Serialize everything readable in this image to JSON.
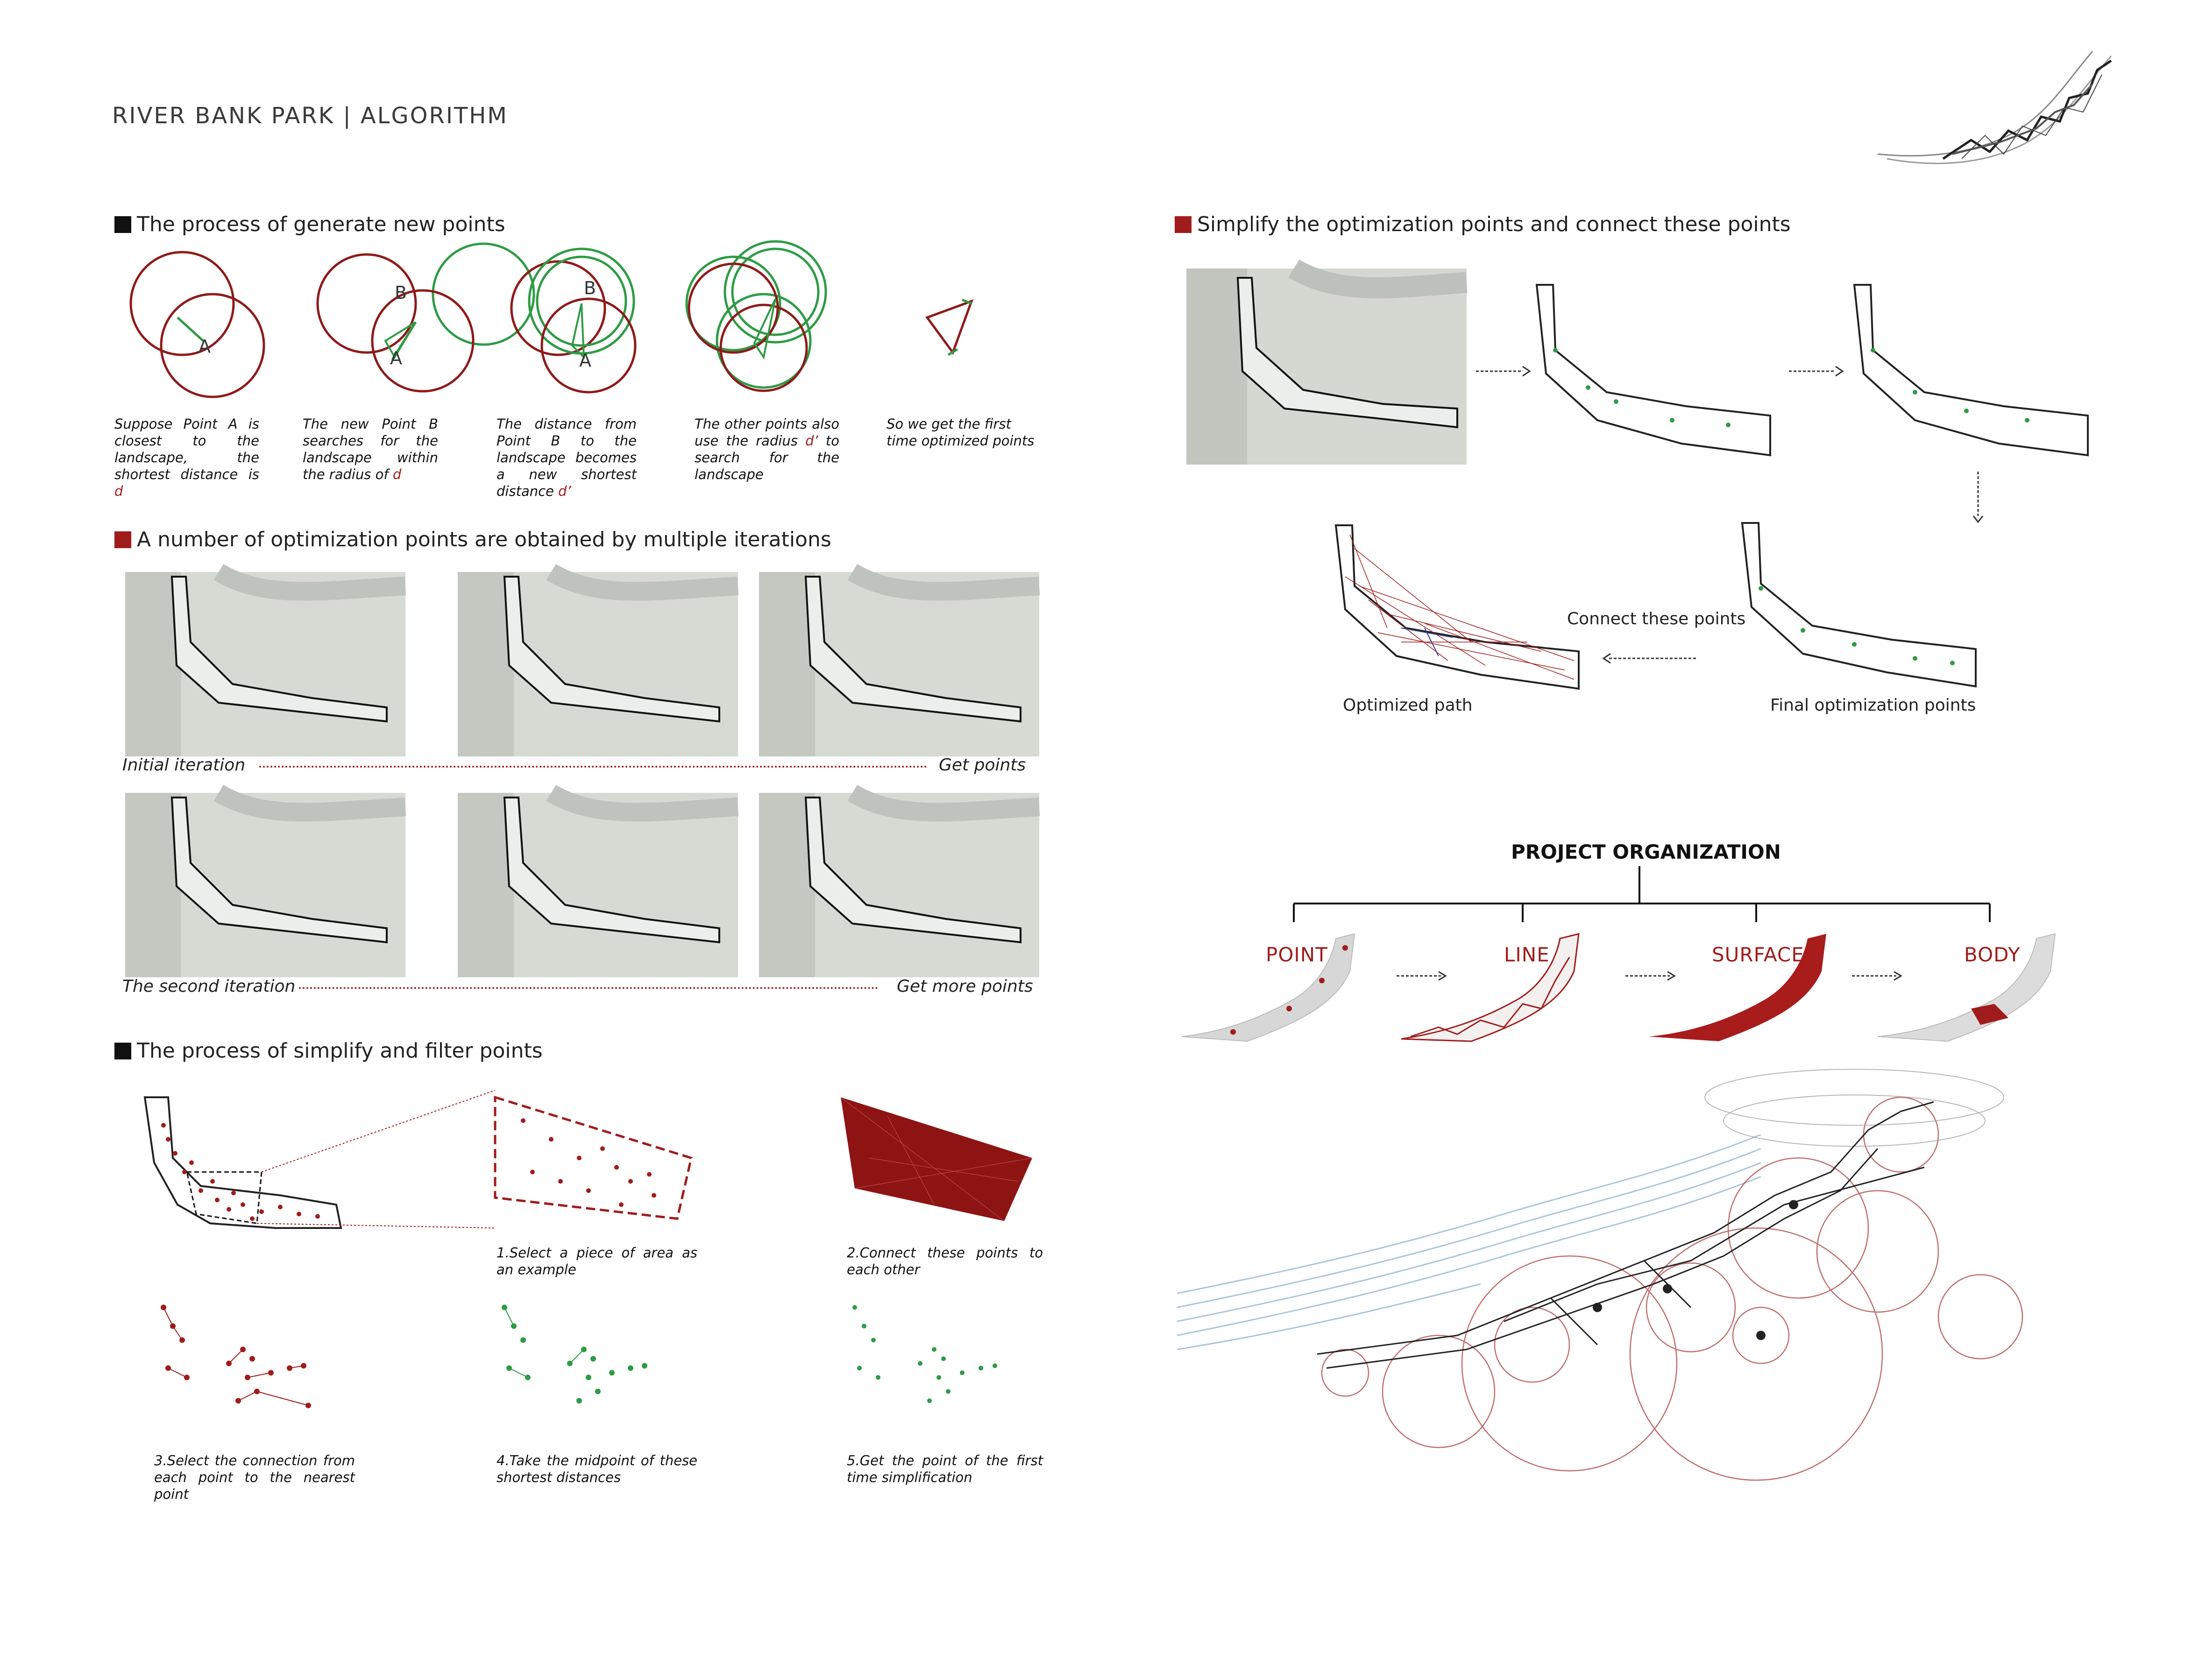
{
  "title": "RIVER BANK PARK | ALGORITHM",
  "colors": {
    "accent_red": "#a01c1c",
    "green": "#2e9b45",
    "black": "#111111"
  },
  "section1": {
    "heading": "The process of generate new points",
    "circle_labels": {
      "a": "A",
      "b": "B"
    },
    "steps": [
      {
        "text": "Suppose Point A is closest to the landscape, the shortest distance is",
        "var": "d"
      },
      {
        "text": "The new Point B searches for the landscape within the radius of",
        "var": "d"
      },
      {
        "text": "The distance from Point B to the landscape becomes a new shortest distance",
        "var": "d’"
      },
      {
        "text": "The other points also use the radius",
        "var": "d’",
        "tail": "to search for the landscape"
      },
      {
        "text": "So we get the first time optimized points",
        "var": ""
      }
    ]
  },
  "section2": {
    "heading": "A number of optimization points are obtained by multiple iterations",
    "row1": {
      "left": "Initial iteration",
      "right": "Get points"
    },
    "row2": {
      "left": "The second iteration",
      "right": "Get more points"
    }
  },
  "section3": {
    "heading": "The process of simplify and filter points",
    "steps": [
      "1.Select a piece of area as an example",
      "2.Connect these points to each other",
      "3.Select the connection from each point to the nearest point",
      "4.Take the midpoint of these shortest distances",
      "5.Get the point of the first time simplification"
    ]
  },
  "section4": {
    "heading": "Simplify the optimization points and connect these points",
    "connect_label": "Connect these points",
    "optimized_path": "Optimized path",
    "final_points": "Final optimization points"
  },
  "organization": {
    "title": "PROJECT ORGANIZATION",
    "items": [
      "POINT",
      "LINE",
      "SURFACE",
      "BODY"
    ]
  }
}
